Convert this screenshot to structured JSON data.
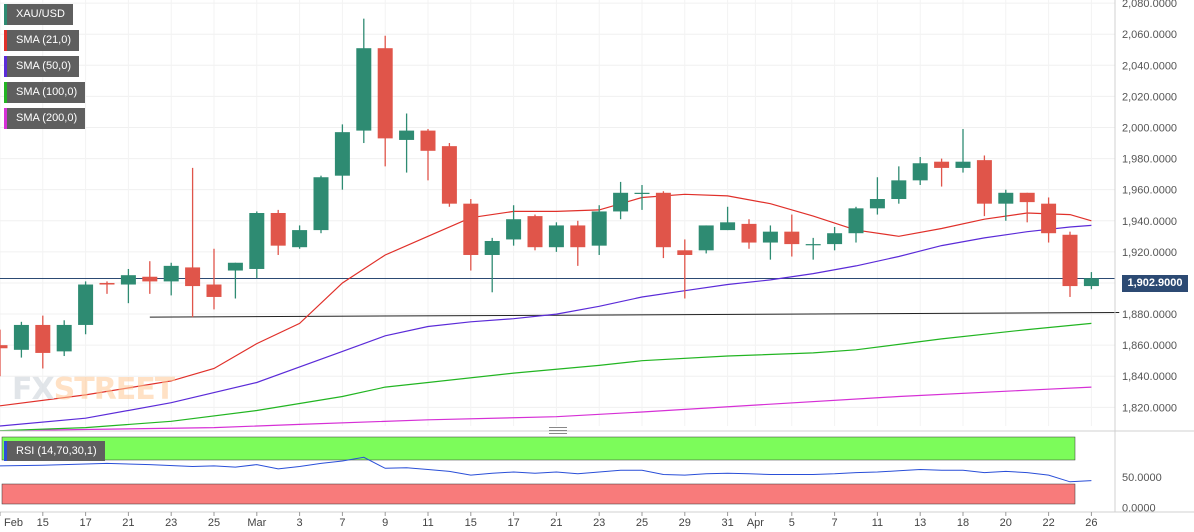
{
  "symbol": "XAU/USD",
  "indicators": {
    "sma21": {
      "label": "SMA (21,0)",
      "color": "#e0302a"
    },
    "sma50": {
      "label": "SMA (50,0)",
      "color": "#5b2bd8"
    },
    "sma100": {
      "label": "SMA (100,0)",
      "color": "#22b522"
    },
    "sma200": {
      "label": "SMA (200,0)",
      "color": "#d630d6"
    }
  },
  "rsi": {
    "label": "RSI (14,70,30,1)",
    "upper_zone_color": "#7cfc5a",
    "lower_zone_color": "#f87b7b",
    "line_color": "#2a4fd8"
  },
  "last_price_label": "1,902.9000",
  "watermark": {
    "part1": "FX",
    "part2": "STREET"
  },
  "colors": {
    "up": "#2e8b72",
    "down": "#e0554a"
  },
  "chart_data": {
    "type": "candlestick",
    "y_axis_ticks": [
      1820,
      1840,
      1860,
      1880,
      1900,
      1920,
      1940,
      1960,
      1980,
      2000,
      2020,
      2040,
      2060,
      2080
    ],
    "y_tick_labels": [
      "1,820.0000",
      "1,840.0000",
      "1,860.0000",
      "1,880.0000",
      "1,900.0000",
      "1,920.0000",
      "1,940.0000",
      "1,960.0000",
      "1,980.0000",
      "2,000.0000",
      "2,020.0000",
      "2,040.0000",
      "2,060.0000",
      "2,080.0000"
    ],
    "ylim": [
      1808,
      2082
    ],
    "x_tick_labels": [
      "Feb",
      "15",
      "17",
      "21",
      "23",
      "25",
      "Mar",
      "3",
      "7",
      "9",
      "11",
      "15",
      "17",
      "21",
      "23",
      "25",
      "29",
      "31",
      "Apr",
      "5",
      "7",
      "11",
      "13",
      "18",
      "20",
      "22",
      "26"
    ],
    "x_tick_positions": [
      0,
      2,
      4,
      6,
      8,
      10,
      12,
      14,
      16,
      18,
      20,
      22,
      24,
      26,
      28,
      30,
      32,
      34,
      35.3,
      37,
      39,
      41,
      43,
      45,
      47,
      49,
      51
    ],
    "candles": [
      {
        "o": 1860,
        "h": 1870,
        "l": 1840,
        "c": 1858
      },
      {
        "o": 1857,
        "h": 1875,
        "l": 1852,
        "c": 1873
      },
      {
        "o": 1873,
        "h": 1879,
        "l": 1845,
        "c": 1855
      },
      {
        "o": 1856,
        "h": 1876,
        "l": 1853,
        "c": 1873
      },
      {
        "o": 1873,
        "h": 1901,
        "l": 1867,
        "c": 1899
      },
      {
        "o": 1900,
        "h": 1901,
        "l": 1893,
        "c": 1899
      },
      {
        "o": 1899,
        "h": 1909,
        "l": 1887,
        "c": 1905
      },
      {
        "o": 1904,
        "h": 1914,
        "l": 1893,
        "c": 1901
      },
      {
        "o": 1901,
        "h": 1913,
        "l": 1892,
        "c": 1911
      },
      {
        "o": 1910,
        "h": 1974,
        "l": 1878,
        "c": 1898
      },
      {
        "o": 1899,
        "h": 1922,
        "l": 1883,
        "c": 1891
      },
      {
        "o": 1908,
        "h": 1913,
        "l": 1890,
        "c": 1913
      },
      {
        "o": 1909,
        "h": 1946,
        "l": 1903,
        "c": 1945
      },
      {
        "o": 1945,
        "h": 1947,
        "l": 1918,
        "c": 1924
      },
      {
        "o": 1923,
        "h": 1937,
        "l": 1922,
        "c": 1934
      },
      {
        "o": 1934,
        "h": 1969,
        "l": 1932,
        "c": 1968
      },
      {
        "o": 1969,
        "h": 2002,
        "l": 1960,
        "c": 1997
      },
      {
        "o": 1998,
        "h": 2070,
        "l": 1990,
        "c": 2051
      },
      {
        "o": 2051,
        "h": 2059,
        "l": 1975,
        "c": 1993
      },
      {
        "o": 1992,
        "h": 2009,
        "l": 1971,
        "c": 1998
      },
      {
        "o": 1998,
        "h": 1999,
        "l": 1966,
        "c": 1985
      },
      {
        "o": 1988,
        "h": 1990,
        "l": 1949,
        "c": 1951
      },
      {
        "o": 1951,
        "h": 1954,
        "l": 1908,
        "c": 1918
      },
      {
        "o": 1918,
        "h": 1929,
        "l": 1894,
        "c": 1927
      },
      {
        "o": 1928,
        "h": 1950,
        "l": 1924,
        "c": 1941
      },
      {
        "o": 1943,
        "h": 1944,
        "l": 1921,
        "c": 1923
      },
      {
        "o": 1923,
        "h": 1939,
        "l": 1920,
        "c": 1937
      },
      {
        "o": 1937,
        "h": 1940,
        "l": 1911,
        "c": 1923
      },
      {
        "o": 1924,
        "h": 1950,
        "l": 1918,
        "c": 1946
      },
      {
        "o": 1946,
        "h": 1965,
        "l": 1941,
        "c": 1958
      },
      {
        "o": 1958,
        "h": 1963,
        "l": 1947,
        "c": 1958
      },
      {
        "o": 1958,
        "h": 1959,
        "l": 1916,
        "c": 1923
      },
      {
        "o": 1921,
        "h": 1928,
        "l": 1890,
        "c": 1918
      },
      {
        "o": 1921,
        "h": 1937,
        "l": 1919,
        "c": 1937
      },
      {
        "o": 1934,
        "h": 1949,
        "l": 1934,
        "c": 1939
      },
      {
        "o": 1938,
        "h": 1941,
        "l": 1922,
        "c": 1926
      },
      {
        "o": 1926,
        "h": 1937,
        "l": 1915,
        "c": 1933
      },
      {
        "o": 1933,
        "h": 1944,
        "l": 1917,
        "c": 1925
      },
      {
        "o": 1925,
        "h": 1929,
        "l": 1915,
        "c": 1925
      },
      {
        "o": 1925,
        "h": 1936,
        "l": 1921,
        "c": 1932
      },
      {
        "o": 1932,
        "h": 1949,
        "l": 1926,
        "c": 1948
      },
      {
        "o": 1948,
        "h": 1968,
        "l": 1944,
        "c": 1954
      },
      {
        "o": 1954,
        "h": 1975,
        "l": 1951,
        "c": 1966
      },
      {
        "o": 1966,
        "h": 1981,
        "l": 1963,
        "c": 1977
      },
      {
        "o": 1978,
        "h": 1980,
        "l": 1962,
        "c": 1974
      },
      {
        "o": 1974,
        "h": 1999,
        "l": 1971,
        "c": 1978
      },
      {
        "o": 1979,
        "h": 1982,
        "l": 1943,
        "c": 1951
      },
      {
        "o": 1951,
        "h": 1960,
        "l": 1940,
        "c": 1958
      },
      {
        "o": 1958,
        "h": 1958,
        "l": 1939,
        "c": 1952
      },
      {
        "o": 1951,
        "h": 1955,
        "l": 1926,
        "c": 1932
      },
      {
        "o": 1931,
        "h": 1933,
        "l": 1891,
        "c": 1898
      },
      {
        "o": 1898,
        "h": 1907,
        "l": 1896,
        "c": 1903
      }
    ],
    "sma21": [
      [
        0,
        1821
      ],
      [
        4,
        1828
      ],
      [
        8,
        1837
      ],
      [
        10,
        1845
      ],
      [
        12,
        1861
      ],
      [
        14,
        1874
      ],
      [
        16,
        1900
      ],
      [
        18,
        1918
      ],
      [
        20,
        1930
      ],
      [
        22,
        1942
      ],
      [
        24,
        1946
      ],
      [
        26,
        1946
      ],
      [
        28,
        1947
      ],
      [
        30,
        1955
      ],
      [
        32,
        1957
      ],
      [
        34,
        1956
      ],
      [
        36,
        1951
      ],
      [
        38,
        1943
      ],
      [
        40,
        1934
      ],
      [
        42,
        1930
      ],
      [
        44,
        1935
      ],
      [
        46,
        1941
      ],
      [
        48,
        1945
      ],
      [
        50,
        1944
      ],
      [
        51,
        1940
      ]
    ],
    "sma50": [
      [
        0,
        1808
      ],
      [
        4,
        1813
      ],
      [
        8,
        1823
      ],
      [
        12,
        1836
      ],
      [
        16,
        1856
      ],
      [
        18,
        1866
      ],
      [
        20,
        1872
      ],
      [
        22,
        1875
      ],
      [
        24,
        1877
      ],
      [
        26,
        1880
      ],
      [
        28,
        1885
      ],
      [
        30,
        1891
      ],
      [
        32,
        1895
      ],
      [
        34,
        1899
      ],
      [
        36,
        1902
      ],
      [
        38,
        1906
      ],
      [
        40,
        1911
      ],
      [
        42,
        1917
      ],
      [
        44,
        1924
      ],
      [
        46,
        1929
      ],
      [
        48,
        1933
      ],
      [
        50,
        1936
      ],
      [
        51,
        1937
      ]
    ],
    "sma100": [
      [
        0,
        1805
      ],
      [
        4,
        1807
      ],
      [
        8,
        1811
      ],
      [
        12,
        1818
      ],
      [
        16,
        1827
      ],
      [
        18,
        1833
      ],
      [
        20,
        1836
      ],
      [
        24,
        1842
      ],
      [
        28,
        1847
      ],
      [
        30,
        1850
      ],
      [
        34,
        1853
      ],
      [
        38,
        1855
      ],
      [
        40,
        1857
      ],
      [
        44,
        1864
      ],
      [
        48,
        1870
      ],
      [
        51,
        1874
      ]
    ],
    "sma200": [
      [
        0,
        1805
      ],
      [
        10,
        1807
      ],
      [
        14,
        1809
      ],
      [
        20,
        1812
      ],
      [
        26,
        1814
      ],
      [
        30,
        1817
      ],
      [
        36,
        1822
      ],
      [
        42,
        1827
      ],
      [
        48,
        1831
      ],
      [
        51,
        1833
      ]
    ],
    "support_line": {
      "x0": 7,
      "x1": 52.3,
      "y0": 1878,
      "y1": 1881
    },
    "last_price": 1902.9,
    "rsi_ticks": [
      0,
      50
    ],
    "rsi_tick_labels": [
      "0.0000",
      "50.0000"
    ],
    "rsi_ylim": [
      -4,
      120
    ],
    "rsi_overbought": 70,
    "rsi_oversold": 30,
    "rsi_values": [
      [
        0,
        68
      ],
      [
        2,
        69
      ],
      [
        3,
        70
      ],
      [
        5,
        72
      ],
      [
        7,
        70
      ],
      [
        9,
        67
      ],
      [
        10,
        68
      ],
      [
        11,
        66
      ],
      [
        12,
        70
      ],
      [
        13,
        63
      ],
      [
        14,
        67
      ],
      [
        15,
        72
      ],
      [
        16,
        76
      ],
      [
        17,
        82
      ],
      [
        18,
        64
      ],
      [
        19,
        65
      ],
      [
        20,
        62
      ],
      [
        21,
        59
      ],
      [
        22,
        53
      ],
      [
        23,
        56
      ],
      [
        24,
        58
      ],
      [
        25,
        56
      ],
      [
        26,
        58
      ],
      [
        27,
        55
      ],
      [
        28,
        58
      ],
      [
        29,
        61
      ],
      [
        30,
        61
      ],
      [
        31,
        54
      ],
      [
        32,
        53
      ],
      [
        33,
        55
      ],
      [
        34,
        56
      ],
      [
        35,
        55
      ],
      [
        36,
        54
      ],
      [
        37,
        54
      ],
      [
        38,
        54
      ],
      [
        39,
        55
      ],
      [
        40,
        57
      ],
      [
        41,
        58
      ],
      [
        42,
        60
      ],
      [
        43,
        62
      ],
      [
        44,
        61
      ],
      [
        45,
        61
      ],
      [
        46,
        57
      ],
      [
        47,
        59
      ],
      [
        48,
        57
      ],
      [
        49,
        53
      ],
      [
        50,
        42
      ],
      [
        51,
        44
      ]
    ]
  }
}
